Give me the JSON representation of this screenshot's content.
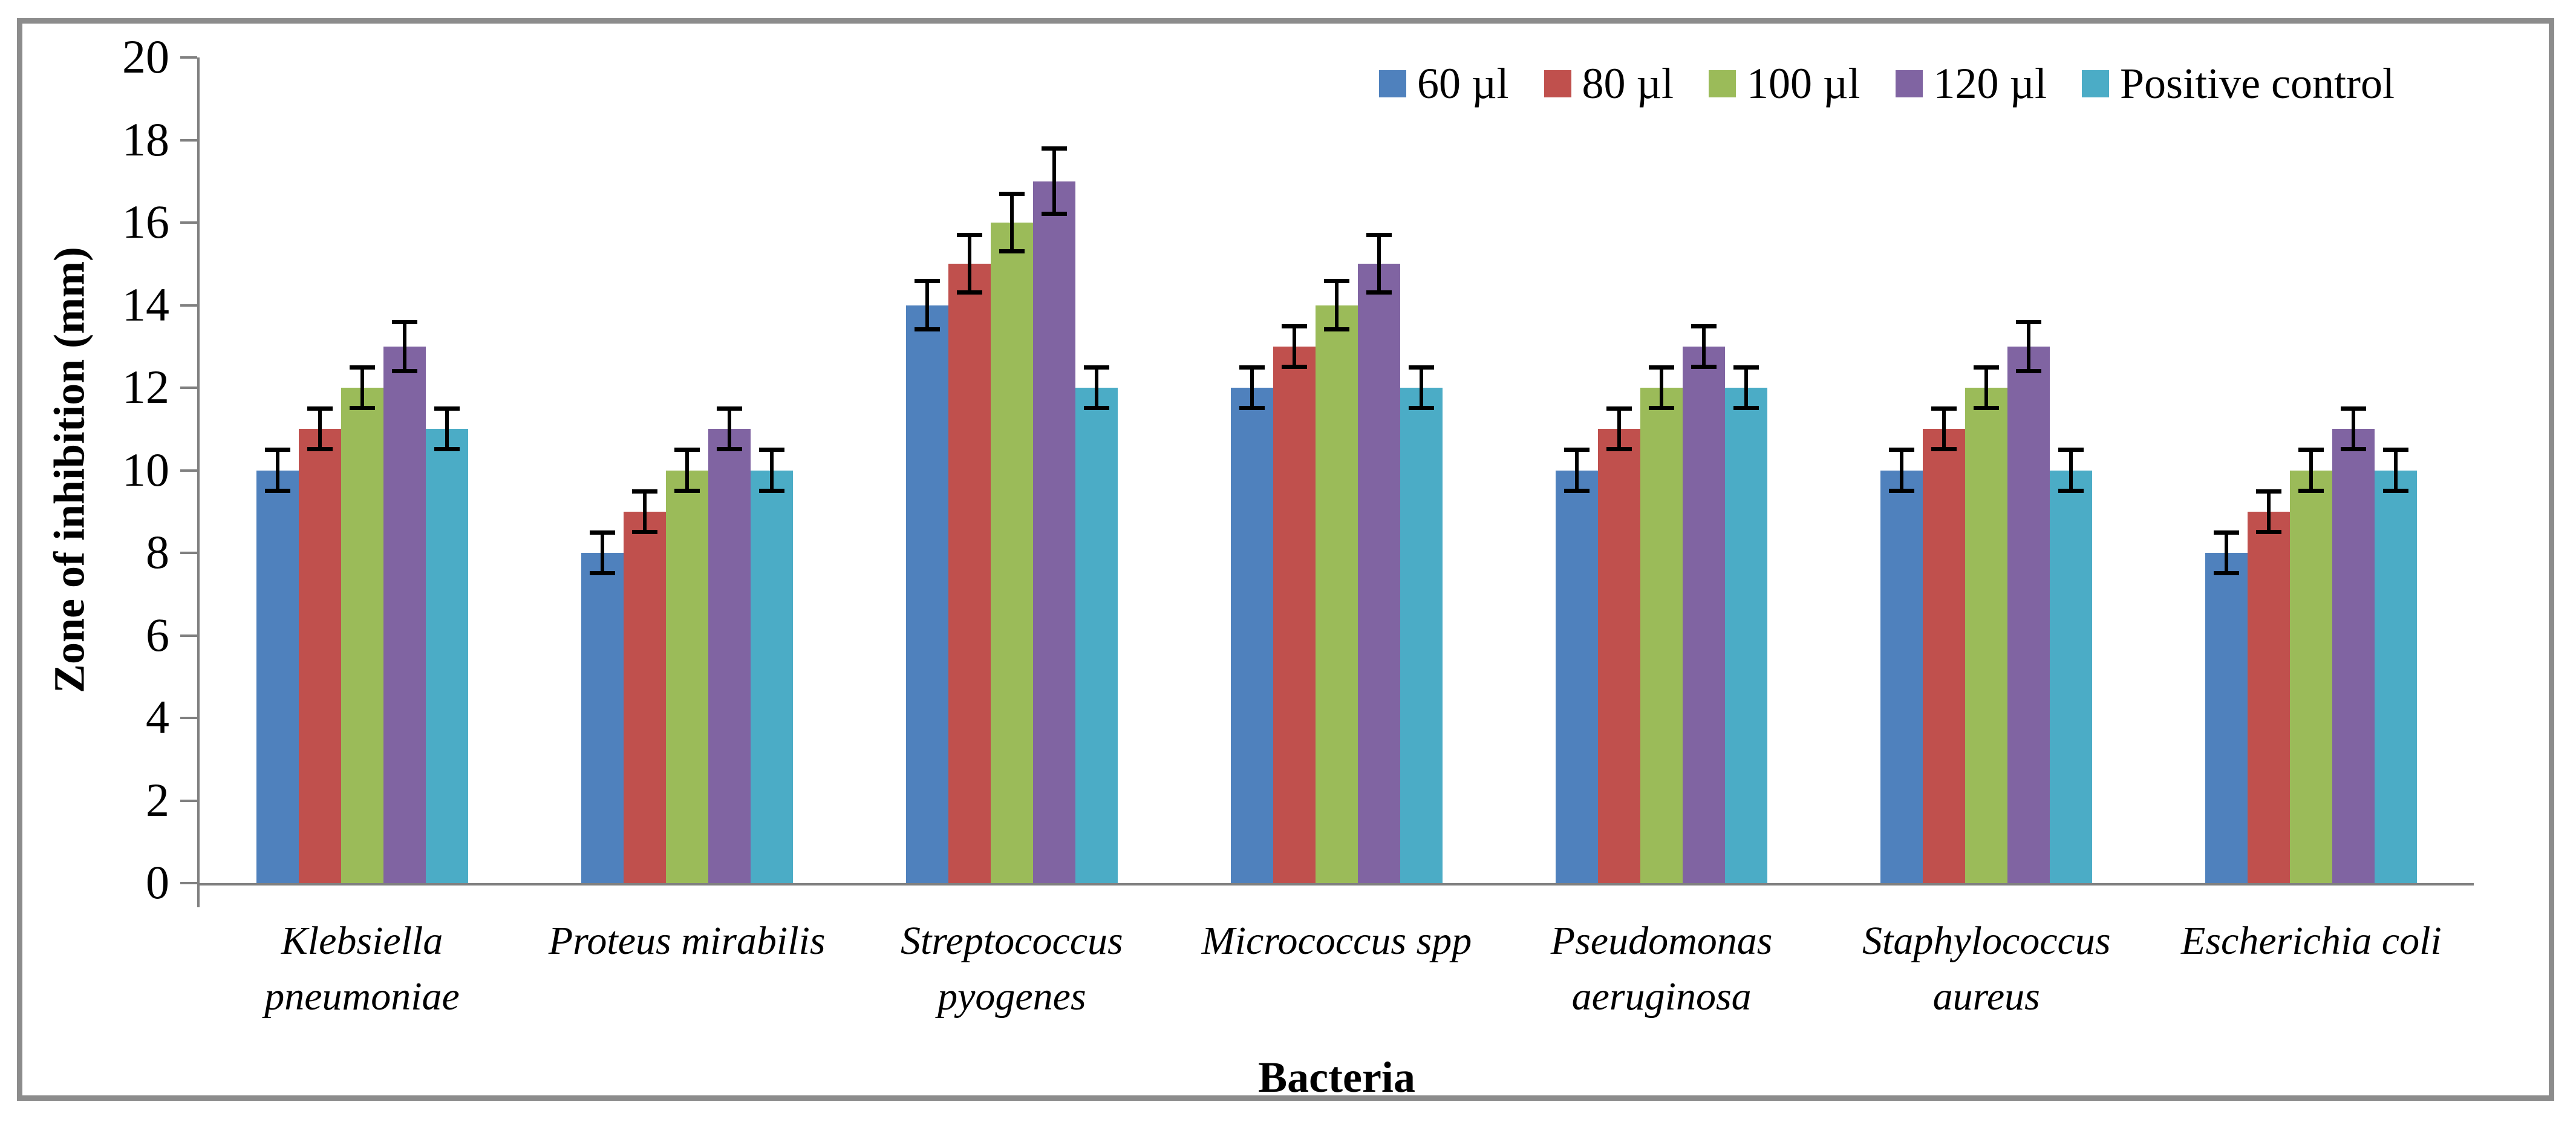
{
  "chart_data": {
    "type": "bar",
    "title": "",
    "xlabel": "Bacteria",
    "ylabel": "Zone of inhibition (mm)",
    "ylim": [
      0,
      20
    ],
    "y_step": 2,
    "y_tick_labels": [
      "0",
      "2",
      "4",
      "6",
      "8",
      "10",
      "12",
      "14",
      "16",
      "18",
      "20"
    ],
    "grid": false,
    "legend_position": "top-right",
    "categories": [
      "Klebsiella\npneumoniae",
      "Proteus mirabilis",
      "Streptococcus\npyogenes",
      "Micrococcus spp",
      "Pseudomonas\naeruginosa",
      "Staphylococcus\naureus",
      "Escherichia coli"
    ],
    "series": [
      {
        "name": "60 µl",
        "color": "#4F81BD",
        "values": [
          10,
          8,
          14,
          12,
          10,
          10,
          8
        ],
        "errors": [
          0.5,
          0.5,
          0.6,
          0.5,
          0.5,
          0.5,
          0.5
        ]
      },
      {
        "name": "80 µl",
        "color": "#C0504D",
        "values": [
          11,
          9,
          15,
          13,
          11,
          11,
          9
        ],
        "errors": [
          0.5,
          0.5,
          0.7,
          0.5,
          0.5,
          0.5,
          0.5
        ]
      },
      {
        "name": "100 µl",
        "color": "#9BBB59",
        "values": [
          12,
          10,
          16,
          14,
          12,
          12,
          10
        ],
        "errors": [
          0.5,
          0.5,
          0.7,
          0.6,
          0.5,
          0.5,
          0.5
        ]
      },
      {
        "name": "120 µl",
        "color": "#8064A2",
        "values": [
          13,
          11,
          17,
          15,
          13,
          13,
          11
        ],
        "errors": [
          0.6,
          0.5,
          0.8,
          0.7,
          0.5,
          0.6,
          0.5
        ]
      },
      {
        "name": "Positive control",
        "color": "#4BACC6",
        "values": [
          11,
          10,
          12,
          12,
          12,
          10,
          10
        ],
        "errors": [
          0.5,
          0.5,
          0.5,
          0.5,
          0.5,
          0.5,
          0.5
        ]
      }
    ],
    "error_bar_color": "#000000",
    "axis_color": "#808080",
    "frame_border_color": "#8C8C8C"
  }
}
